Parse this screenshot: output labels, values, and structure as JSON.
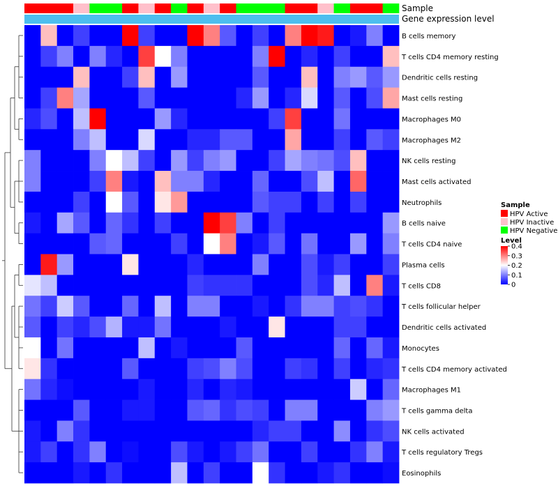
{
  "chart_data": {
    "type": "heatmap",
    "title": "",
    "annotation_tracks": [
      {
        "label": "Sample",
        "values": [
          "HPV Active",
          "HPV Active",
          "HPV Active",
          "HPV Inactive",
          "HPV Negative",
          "HPV Negative",
          "HPV Active",
          "HPV Inactive",
          "HPV Active",
          "HPV Negative",
          "HPV Active",
          "HPV Inactive",
          "HPV Active",
          "HPV Negative",
          "HPV Negative",
          "HPV Negative",
          "HPV Active",
          "HPV Active",
          "HPV Inactive",
          "HPV Negative",
          "HPV Active",
          "HPV Active",
          "HPV Negative"
        ]
      },
      {
        "label": "Gene expression level"
      }
    ],
    "rows": [
      "B cells memory",
      "T cells CD4 memory resting",
      "Dendritic cells resting",
      "Mast cells resting",
      "Macrophages M0",
      "Macrophages M2",
      "NK cells resting",
      "Mast cells activated",
      "Neutrophils",
      "B cells naive",
      "T cells CD4 naive",
      "Plasma cells",
      "T cells CD8",
      "T cells follicular helper",
      "Dendritic cells activated",
      "Monocytes",
      "T cells CD4 memory activated",
      "Macrophages M1",
      "T cells gamma delta",
      "NK cells activated",
      "T cells regulatory  Tregs",
      "Eosinophils"
    ],
    "values": [
      [
        0,
        0.25,
        0,
        0.05,
        0,
        0,
        0.4,
        0.05,
        0,
        0,
        0.4,
        0.3,
        0.07,
        0,
        0.05,
        0,
        0.3,
        0.4,
        0.38,
        0,
        0.02,
        0.1,
        0
      ],
      [
        0,
        0.05,
        0.1,
        0,
        0.1,
        0.03,
        0,
        0.35,
        0.2,
        0.1,
        0,
        0,
        0,
        0,
        0.1,
        0.4,
        0,
        0.03,
        0,
        0.05,
        0,
        0,
        0.25
      ],
      [
        0,
        0,
        0,
        0.25,
        0,
        0,
        0.05,
        0.25,
        0,
        0.12,
        0,
        0,
        0,
        0,
        0.07,
        0,
        0,
        0.25,
        0,
        0.1,
        0.12,
        0.07,
        0.12
      ],
      [
        0,
        0.05,
        0.3,
        0.13,
        0,
        0,
        0,
        0.07,
        0,
        0,
        0,
        0,
        0,
        0.03,
        0.12,
        0,
        0.03,
        0.17,
        0,
        0.07,
        0,
        0.06,
        0.27
      ],
      [
        0.03,
        0.06,
        0,
        0.15,
        0.4,
        0,
        0,
        0,
        0.12,
        0.03,
        0,
        0,
        0,
        0,
        0,
        0.05,
        0.35,
        0,
        0,
        0.09,
        0,
        0,
        0
      ],
      [
        0,
        0,
        0,
        0.1,
        0.15,
        0,
        0,
        0.17,
        0,
        0,
        0.03,
        0.03,
        0.07,
        0.07,
        0,
        0,
        0.27,
        0,
        0,
        0.05,
        0,
        0.07,
        0.05
      ],
      [
        0.1,
        0,
        0,
        0,
        0.1,
        0.2,
        0.15,
        0.05,
        0,
        0.12,
        0.05,
        0.1,
        0.12,
        0,
        0,
        0.05,
        0.13,
        0.1,
        0.09,
        0.06,
        0.25,
        0,
        0
      ],
      [
        0.1,
        0,
        0,
        0,
        0.05,
        0.3,
        0.02,
        0,
        0.25,
        0.1,
        0.1,
        0.03,
        0,
        0,
        0.08,
        0,
        0,
        0.06,
        0.15,
        0,
        0.32,
        0,
        0
      ],
      [
        0,
        0,
        0,
        0.05,
        0,
        0.2,
        0.07,
        0,
        0.22,
        0.28,
        0,
        0,
        0,
        0,
        0.07,
        0.05,
        0.05,
        0,
        0.05,
        0,
        0.05,
        0,
        0
      ],
      [
        0.02,
        0,
        0.13,
        0.07,
        0,
        0.08,
        0.04,
        0,
        0.05,
        0,
        0,
        0.4,
        0.35,
        0.1,
        0,
        0.05,
        0,
        0,
        0,
        0,
        0,
        0,
        0.12
      ],
      [
        0,
        0,
        0,
        0,
        0.07,
        0.08,
        0,
        0,
        0,
        0.05,
        0,
        0.2,
        0.3,
        0,
        0.02,
        0.07,
        0,
        0.09,
        0,
        0,
        0.12,
        0,
        0.1
      ],
      [
        0,
        0.38,
        0.12,
        0,
        0,
        0,
        0.22,
        0,
        0,
        0,
        0.03,
        0,
        0,
        0,
        0.1,
        0,
        0,
        0.06,
        0.02,
        0.05,
        0,
        0,
        0.05
      ],
      [
        0.18,
        0.15,
        0,
        0,
        0,
        0,
        0,
        0,
        0,
        0,
        0.05,
        0.04,
        0.04,
        0.04,
        0,
        0,
        0,
        0.06,
        0.03,
        0.15,
        0,
        0.3,
        0.02
      ],
      [
        0.09,
        0.05,
        0.16,
        0.07,
        0,
        0,
        0.08,
        0,
        0.15,
        0,
        0.1,
        0.1,
        0,
        0,
        0.02,
        0,
        0.04,
        0.1,
        0.1,
        0.05,
        0.06,
        0.04,
        0
      ],
      [
        0.07,
        0,
        0.05,
        0.03,
        0.06,
        0.14,
        0.02,
        0.02,
        0.09,
        0,
        0,
        0,
        0.02,
        0,
        0,
        0.22,
        0,
        0,
        0,
        0.05,
        0.05,
        0,
        0
      ],
      [
        0.2,
        0,
        0.09,
        0,
        0,
        0,
        0,
        0.15,
        0,
        0.02,
        0,
        0,
        0,
        0.07,
        0,
        0,
        0,
        0,
        0,
        0.08,
        0,
        0.08,
        0.02
      ],
      [
        0.22,
        0.04,
        0,
        0,
        0,
        0,
        0.07,
        0,
        0,
        0,
        0.05,
        0.06,
        0.1,
        0.06,
        0,
        0,
        0.05,
        0.04,
        0,
        0.05,
        0,
        0.03,
        0.04
      ],
      [
        0.09,
        0.03,
        0.01,
        0,
        0,
        0,
        0,
        0.02,
        0,
        0,
        0.03,
        0,
        0.03,
        0.02,
        0,
        0,
        0,
        0,
        0,
        0,
        0.16,
        0,
        0.08
      ],
      [
        0,
        0,
        0,
        0.07,
        0,
        0,
        0.02,
        0.02,
        0,
        0,
        0.07,
        0.08,
        0.04,
        0.06,
        0.05,
        0,
        0.1,
        0.1,
        0,
        0,
        0,
        0.1,
        0.12
      ],
      [
        0.02,
        0,
        0.1,
        0.04,
        0,
        0,
        0,
        0,
        0,
        0,
        0,
        0,
        0,
        0,
        0.03,
        0.05,
        0.05,
        0,
        0,
        0.11,
        0,
        0.04,
        0.06
      ],
      [
        0.02,
        0.05,
        0,
        0.04,
        0.1,
        0,
        0.01,
        0,
        0,
        0.06,
        0.02,
        0,
        0.02,
        0.05,
        0.09,
        0,
        0,
        0.05,
        0,
        0,
        0.04,
        0.1,
        0.02
      ],
      [
        0,
        0,
        0,
        0.02,
        0,
        0.04,
        0,
        0,
        0,
        0.15,
        0,
        0.05,
        0,
        0,
        0.2,
        0.04,
        0,
        0,
        0.02,
        0.04,
        0,
        0,
        0.01
      ]
    ],
    "color_scale": {
      "min": 0,
      "mid": 0.2,
      "max": 0.4,
      "low": "#0000FF",
      "midColor": "#FFFFFF",
      "high": "#FF0000"
    },
    "legends": {
      "sample": {
        "title": "Sample",
        "items": [
          {
            "label": "HPV Active",
            "color": "#FF0000"
          },
          {
            "label": "HPV Inactive",
            "color": "#FFC0CB"
          },
          {
            "label": "HPV Negative",
            "color": "#00FF00"
          }
        ]
      },
      "level": {
        "title": "Level",
        "ticks": [
          "0.4",
          "0.3",
          "0.2",
          "0.1",
          "0"
        ]
      }
    },
    "expression_track_color": "#4DBEEE",
    "row_dendrogram": true
  }
}
